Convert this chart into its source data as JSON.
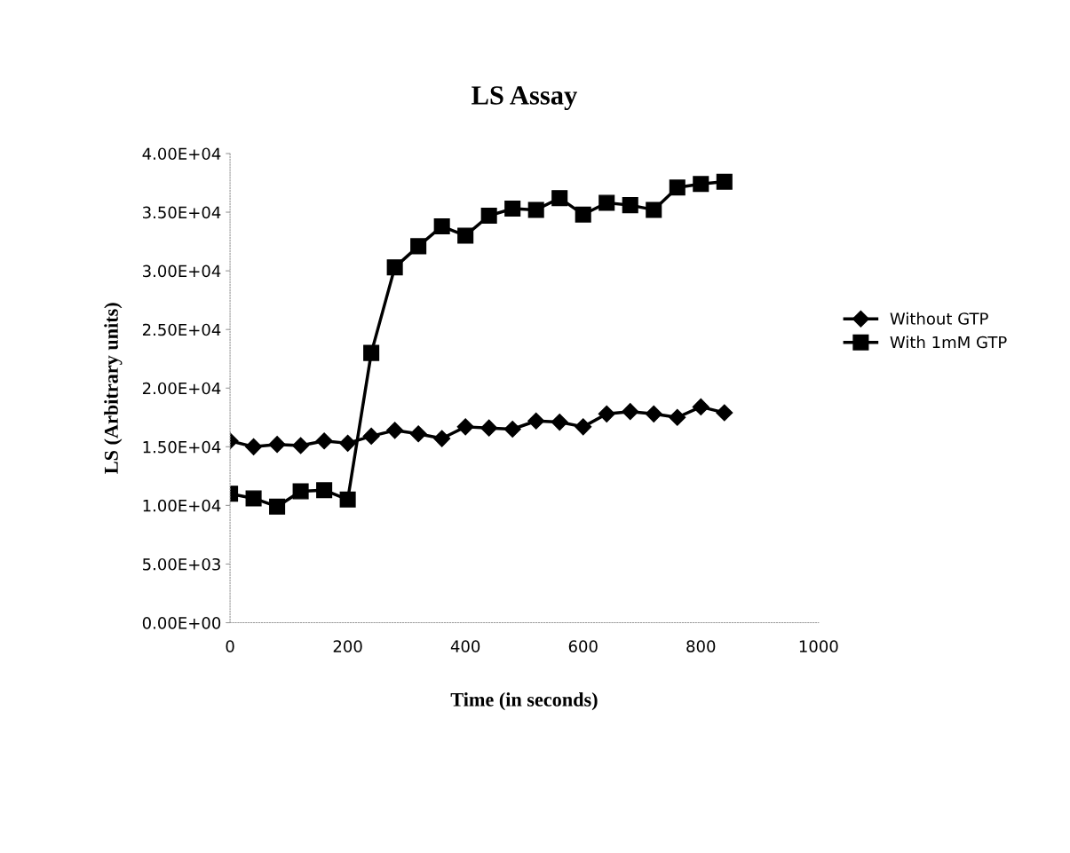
{
  "chart_data": {
    "type": "line",
    "title": "LS Assay",
    "xlabel": "Time (in seconds)",
    "ylabel": "LS (Arbitrary units)",
    "x": [
      0,
      40,
      80,
      120,
      160,
      200,
      240,
      280,
      320,
      360,
      400,
      440,
      480,
      520,
      560,
      600,
      640,
      680,
      720,
      760,
      800,
      840
    ],
    "series": [
      {
        "name": "Without GTP",
        "color": "#000000",
        "marker": "diamond",
        "values": [
          15500,
          15000,
          15200,
          15100,
          15500,
          15300,
          15900,
          16400,
          16100,
          15700,
          16700,
          16600,
          16500,
          17200,
          17100,
          16700,
          17800,
          18000,
          17800,
          17500,
          18400,
          17900
        ]
      },
      {
        "name": "With 1mM GTP",
        "color": "#000000",
        "marker": "square",
        "values": [
          11000,
          10600,
          9900,
          11200,
          11300,
          10500,
          23000,
          30300,
          32100,
          33800,
          33000,
          34700,
          35300,
          35200,
          36200,
          34800,
          35800,
          35600,
          35200,
          37100,
          37400,
          37600
        ]
      }
    ],
    "xlim": [
      0,
      1000
    ],
    "xticks": [
      0,
      200,
      400,
      600,
      800,
      1000
    ],
    "ylim": [
      0,
      40000
    ],
    "yticks": [
      {
        "value": 0,
        "label": "0.00E+00"
      },
      {
        "value": 5000,
        "label": "5.00E+03"
      },
      {
        "value": 10000,
        "label": "1.00E+04"
      },
      {
        "value": 15000,
        "label": "1.50E+04"
      },
      {
        "value": 20000,
        "label": "2.00E+04"
      },
      {
        "value": 25000,
        "label": "2.50E+04"
      },
      {
        "value": 30000,
        "label": "3.00E+04"
      },
      {
        "value": 35000,
        "label": "3.50E+04"
      },
      {
        "value": 40000,
        "label": "4.00E+04"
      }
    ],
    "grid": false,
    "legend": "right",
    "line_style": "solid"
  }
}
